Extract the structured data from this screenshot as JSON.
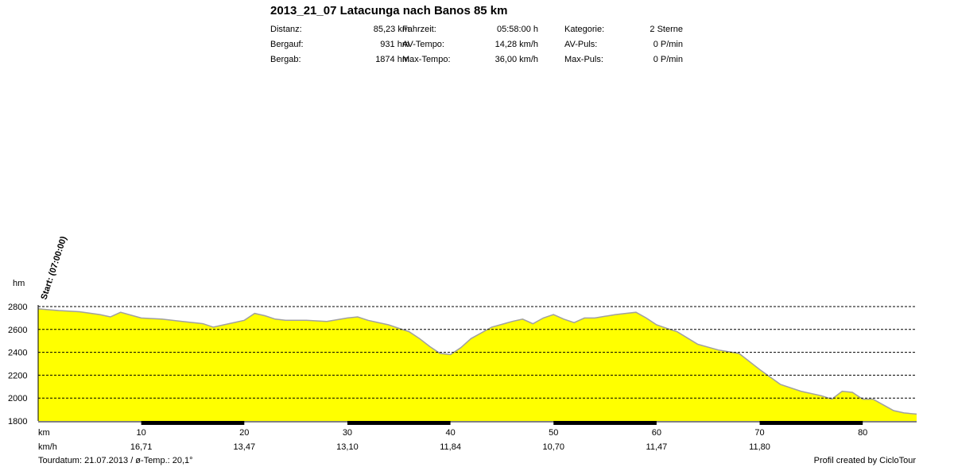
{
  "header": {
    "title": "2013_21_07 Latacunga nach Banos 85 km",
    "stats": [
      {
        "label": "Distanz:",
        "value": "85,23 km"
      },
      {
        "label": "Bergauf:",
        "value": "931 hm"
      },
      {
        "label": "Bergab:",
        "value": "1874 hm"
      },
      {
        "label": "Fahrzeit:",
        "value": "05:58:00 h"
      },
      {
        "label": "AV-Tempo:",
        "value": "14,28 km/h"
      },
      {
        "label": "Max-Tempo:",
        "value": "36,00 km/h"
      },
      {
        "label": "Kategorie:",
        "value": "2 Sterne"
      },
      {
        "label": "AV-Puls:",
        "value": "0 P/min"
      },
      {
        "label": "Max-Puls:",
        "value": "0 P/min"
      }
    ]
  },
  "footer": {
    "left": "Tourdatum: 21.07.2013  /  ø-Temp.: 20,1°",
    "right": "Profil created by CicloTour"
  },
  "colors": {
    "fill": "#ffff00",
    "line": "#a0a0a0",
    "grid": "#000000",
    "band": "#000000"
  },
  "chart_data": {
    "type": "area",
    "ylabel": "hm",
    "xlabel": "km",
    "speed_label": "km/h",
    "start_annotation": "Start: (07:00:00)",
    "xlim": [
      0,
      85.23
    ],
    "ylim": [
      1800,
      2800
    ],
    "y_ticks": [
      1800,
      2000,
      2200,
      2400,
      2600,
      2800
    ],
    "x_ticks": [
      10,
      20,
      30,
      40,
      50,
      60,
      70,
      80
    ],
    "speed_labels": [
      {
        "km": 10,
        "value": "16,71"
      },
      {
        "km": 20,
        "value": "13,47"
      },
      {
        "km": 30,
        "value": "13,10"
      },
      {
        "km": 40,
        "value": "11,84"
      },
      {
        "km": 50,
        "value": "10,70"
      },
      {
        "km": 60,
        "value": "11,47"
      },
      {
        "km": 70,
        "value": "11,80"
      }
    ],
    "dark_bands": [
      [
        10,
        20
      ],
      [
        30,
        40
      ],
      [
        50,
        60
      ],
      [
        70,
        80
      ]
    ],
    "grid": true,
    "series": [
      {
        "x": [
          0,
          2,
          4,
          6,
          7,
          8,
          10,
          12,
          14,
          16,
          17,
          18,
          20,
          21,
          22,
          23,
          24,
          26,
          28,
          30,
          31,
          32,
          34,
          36,
          37,
          38,
          39,
          40,
          41,
          42,
          44,
          46,
          47,
          48,
          49,
          50,
          51,
          52,
          53,
          54,
          56,
          57,
          58,
          59,
          60,
          61,
          62,
          64,
          66,
          68,
          70,
          72,
          74,
          76,
          77,
          78,
          79,
          80,
          81,
          82,
          83,
          84,
          85.23
        ],
        "y": [
          2780,
          2765,
          2755,
          2730,
          2710,
          2750,
          2700,
          2690,
          2670,
          2650,
          2620,
          2640,
          2680,
          2740,
          2720,
          2690,
          2680,
          2680,
          2670,
          2700,
          2710,
          2680,
          2640,
          2580,
          2520,
          2450,
          2390,
          2380,
          2440,
          2520,
          2620,
          2670,
          2690,
          2650,
          2700,
          2730,
          2690,
          2660,
          2700,
          2700,
          2730,
          2740,
          2750,
          2700,
          2640,
          2610,
          2580,
          2470,
          2420,
          2390,
          2250,
          2120,
          2060,
          2020,
          1990,
          2060,
          2050,
          1990,
          1990,
          1940,
          1890,
          1870,
          1860
        ]
      }
    ]
  }
}
